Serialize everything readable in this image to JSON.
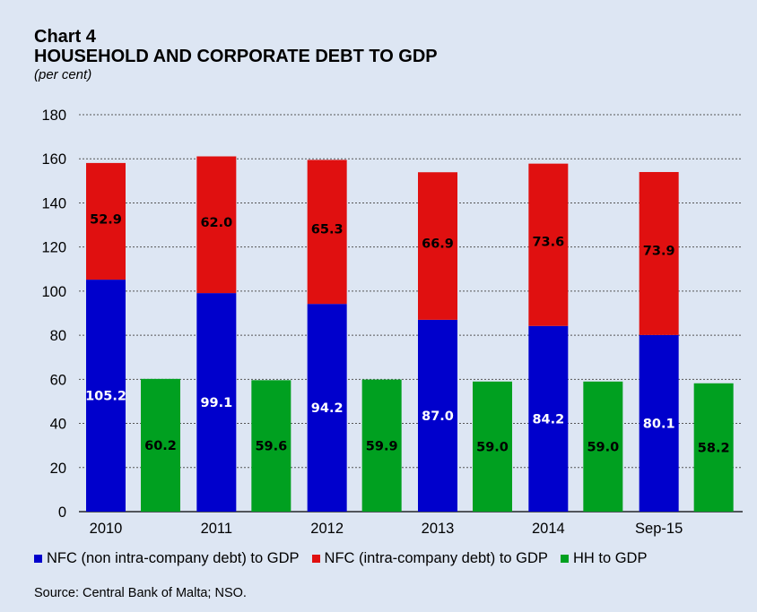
{
  "header": {
    "label": "Chart 4",
    "title": "HOUSEHOLD AND CORPORATE DEBT TO GDP",
    "subtitle": "(per cent)"
  },
  "source": "Source: Central Bank of Malta; NSO.",
  "colors": {
    "nfc_non_intra": "#0000cc",
    "nfc_intra": "#e01010",
    "hh": "#00a020",
    "background": "#dde6f3",
    "grid": "#555555"
  },
  "chart_data": {
    "type": "bar",
    "stacked": true,
    "categories": [
      "2010",
      "2011",
      "2012",
      "2013",
      "2014",
      "Sep-15"
    ],
    "series": [
      {
        "name": "NFC (non intra-company debt) to GDP",
        "stack": "NFC",
        "values": [
          105.2,
          99.1,
          94.2,
          87.0,
          84.2,
          80.1
        ]
      },
      {
        "name": "NFC (intra-company debt) to GDP",
        "stack": "NFC",
        "values": [
          52.9,
          62.0,
          65.3,
          66.9,
          73.6,
          73.9
        ]
      },
      {
        "name": "HH to GDP",
        "stack": "HH",
        "values": [
          60.2,
          59.6,
          59.9,
          59.0,
          59.0,
          58.2
        ]
      }
    ],
    "data_labels": {
      "nfc_non_intra": [
        "105.2",
        "99.1",
        "94.2",
        "87.0",
        "84.2",
        "80.1"
      ],
      "nfc_intra": [
        "52.9",
        "62.0",
        "65.3",
        "66.9",
        "73.6",
        "73.9"
      ],
      "hh": [
        "60.2",
        "59.6",
        "59.9",
        "59.0",
        "59.0",
        "58.2"
      ]
    },
    "y_ticks": [
      "0",
      "20",
      "40",
      "60",
      "80",
      "100",
      "120",
      "140",
      "160",
      "180"
    ],
    "ylim": [
      0,
      180
    ],
    "grid": true,
    "grid_style": "dotted",
    "legend_position": "bottom"
  }
}
